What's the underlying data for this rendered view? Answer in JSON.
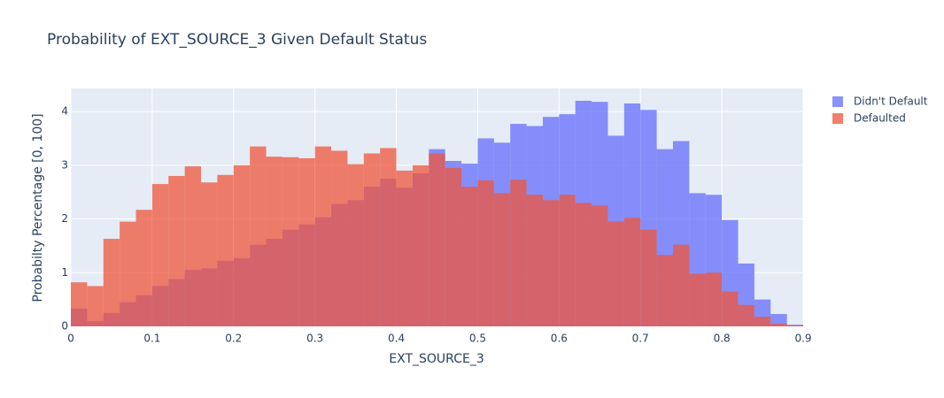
{
  "chart_data": {
    "type": "histogram",
    "title": "Probability of EXT_SOURCE_3 Given Default Status",
    "x_label": "EXT_SOURCE_3",
    "y_label": "Probabilty Percentage [0, 100]",
    "barmode": "overlay",
    "opacity": 0.75,
    "grid": true,
    "legend": "right",
    "bins": [
      0,
      0.02,
      0.04,
      0.06,
      0.08,
      0.1,
      0.12,
      0.14,
      0.16,
      0.18,
      0.2,
      0.22,
      0.24,
      0.26,
      0.28,
      0.3,
      0.32,
      0.34,
      0.36,
      0.38,
      0.4,
      0.42,
      0.44,
      0.46,
      0.48,
      0.5,
      0.52,
      0.54,
      0.56,
      0.58,
      0.6,
      0.62,
      0.64,
      0.66,
      0.68,
      0.7,
      0.72,
      0.74,
      0.76,
      0.78,
      0.8,
      0.82,
      0.84,
      0.86,
      0.88,
      0.9
    ],
    "series": [
      {
        "name": "Didn't Default",
        "color": "#636efa",
        "values": [
          0.33,
          0.1,
          0.25,
          0.45,
          0.58,
          0.75,
          0.88,
          1.05,
          1.08,
          1.22,
          1.27,
          1.52,
          1.63,
          1.8,
          1.9,
          2.03,
          2.28,
          2.35,
          2.6,
          2.75,
          2.58,
          2.85,
          3.3,
          3.08,
          3.03,
          3.5,
          3.42,
          3.77,
          3.73,
          3.9,
          3.95,
          4.2,
          4.18,
          3.55,
          4.15,
          4.03,
          3.3,
          3.45,
          2.48,
          2.45,
          1.98,
          1.17,
          0.5,
          0.23,
          0.03
        ]
      },
      {
        "name": "Defaulted",
        "color": "#ef553b",
        "values": [
          0.82,
          0.75,
          1.63,
          1.95,
          2.17,
          2.65,
          2.8,
          2.98,
          2.68,
          2.82,
          3.0,
          3.35,
          3.16,
          3.15,
          3.13,
          3.35,
          3.27,
          3.02,
          3.22,
          3.32,
          2.9,
          3.0,
          3.22,
          2.95,
          2.6,
          2.72,
          2.48,
          2.73,
          2.45,
          2.35,
          2.45,
          2.3,
          2.25,
          1.95,
          2.02,
          1.8,
          1.33,
          1.52,
          0.98,
          1.0,
          0.65,
          0.4,
          0.18,
          0.05,
          0.02
        ]
      }
    ],
    "xlim": [
      0,
      0.9
    ],
    "xticks": [
      0,
      0.1,
      0.2,
      0.3,
      0.4,
      0.5,
      0.6,
      0.7,
      0.8,
      0.9
    ],
    "ylim": [
      0,
      4.43
    ],
    "yticks": [
      0,
      1,
      2,
      3,
      4
    ]
  }
}
